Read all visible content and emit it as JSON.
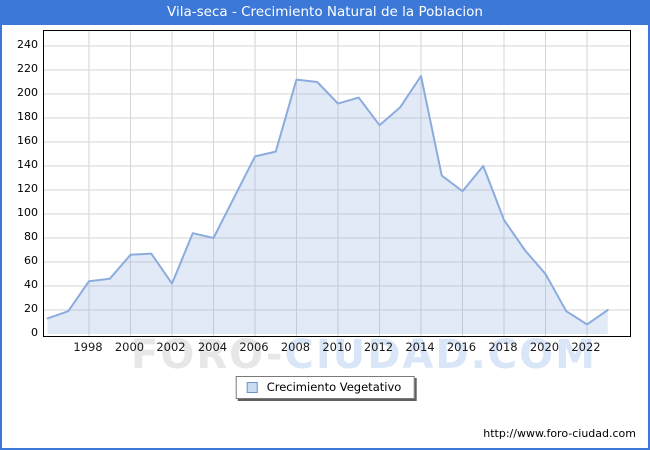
{
  "window": {
    "title": "Vila-seca - Crecimiento Natural de la Poblacion"
  },
  "colors": {
    "accent_blue": "#3C78D8",
    "line": "#8CACDE",
    "area_fill": "#E3EEFB",
    "grid": "#D6D6D6",
    "plot_border": "#000000",
    "legend_swatch_fill": "#C8DCF3",
    "legend_swatch_border": "#6E95C8",
    "watermark_gray": "#E7E7E7",
    "watermark_blue": "#D9E6F8"
  },
  "watermark": {
    "part1": "FORO",
    "separator": "-",
    "part2": "CIUDAD.COM"
  },
  "legend": {
    "label": "Crecimiento Vegetativo"
  },
  "footer": {
    "url": "http://www.foro-ciudad.com"
  },
  "chart_data": {
    "type": "area",
    "title": "Vila-seca - Crecimiento Natural de la Poblacion",
    "grid": true,
    "legend_position": "bottom-center",
    "x": [
      1996,
      1997,
      1998,
      1999,
      2000,
      2001,
      2002,
      2003,
      2004,
      2005,
      2006,
      2007,
      2008,
      2009,
      2010,
      2011,
      2012,
      2013,
      2014,
      2015,
      2016,
      2017,
      2018,
      2019,
      2020,
      2021,
      2022,
      2023
    ],
    "series": [
      {
        "name": "Crecimiento Vegetativo",
        "values": [
          13,
          19,
          44,
          46,
          66,
          67,
          42,
          84,
          80,
          114,
          148,
          152,
          212,
          210,
          192,
          197,
          174,
          189,
          215,
          132,
          119,
          140,
          95,
          70,
          50,
          19,
          8,
          20
        ]
      }
    ],
    "x_ticks": [
      1998,
      2000,
      2002,
      2004,
      2006,
      2008,
      2010,
      2012,
      2014,
      2016,
      2018,
      2020,
      2022
    ],
    "y_ticks": [
      0,
      20,
      40,
      60,
      80,
      100,
      120,
      140,
      160,
      180,
      200,
      220,
      240
    ],
    "ylim": [
      0,
      252
    ],
    "xlim": [
      1995.8,
      2024.1
    ],
    "ylabel": "",
    "xlabel": ""
  }
}
